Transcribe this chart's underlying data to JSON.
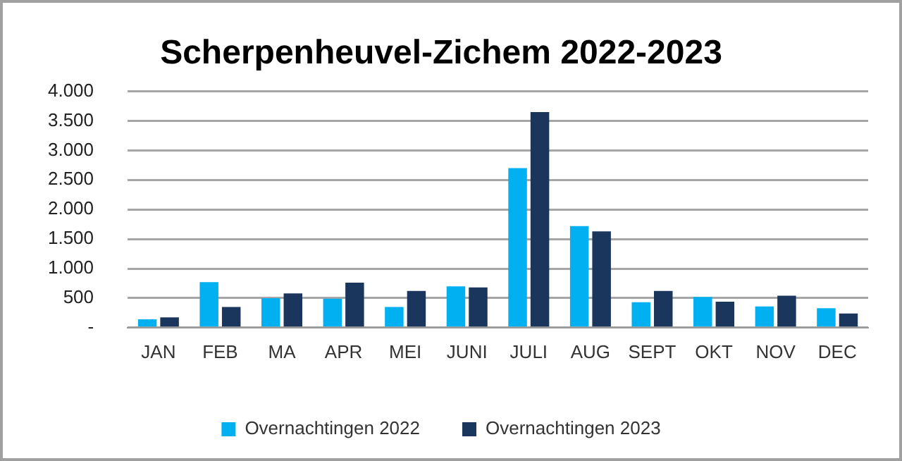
{
  "chart_data": {
    "type": "bar",
    "title": "Scherpenheuvel-Zichem 2022-2023",
    "categories": [
      "JAN",
      "FEB",
      "MA",
      "APR",
      "MEI",
      "JUNI",
      "JULI",
      "AUG",
      "SEPT",
      "OKT",
      "NOV",
      "DEC"
    ],
    "series": [
      {
        "name": "Overnachtingen 2022",
        "color": "#00b0f0",
        "values": [
          140,
          770,
          500,
          490,
          350,
          700,
          2700,
          1720,
          430,
          520,
          360,
          330
        ]
      },
      {
        "name": "Overnachtingen 2023",
        "color": "#1a365d",
        "values": [
          175,
          350,
          580,
          760,
          620,
          680,
          3650,
          1630,
          620,
          440,
          540,
          240
        ]
      }
    ],
    "ylim": [
      0,
      4000
    ],
    "yticks": [
      {
        "value": 0,
        "label": "-"
      },
      {
        "value": 500,
        "label": "500"
      },
      {
        "value": 1000,
        "label": "1.000"
      },
      {
        "value": 1500,
        "label": "1.500"
      },
      {
        "value": 2000,
        "label": "2.000"
      },
      {
        "value": 2500,
        "label": "2.500"
      },
      {
        "value": 3000,
        "label": "3.000"
      },
      {
        "value": 3500,
        "label": "3.500"
      },
      {
        "value": 4000,
        "label": "4.000"
      }
    ],
    "grid": "y",
    "legend": "bottom"
  }
}
